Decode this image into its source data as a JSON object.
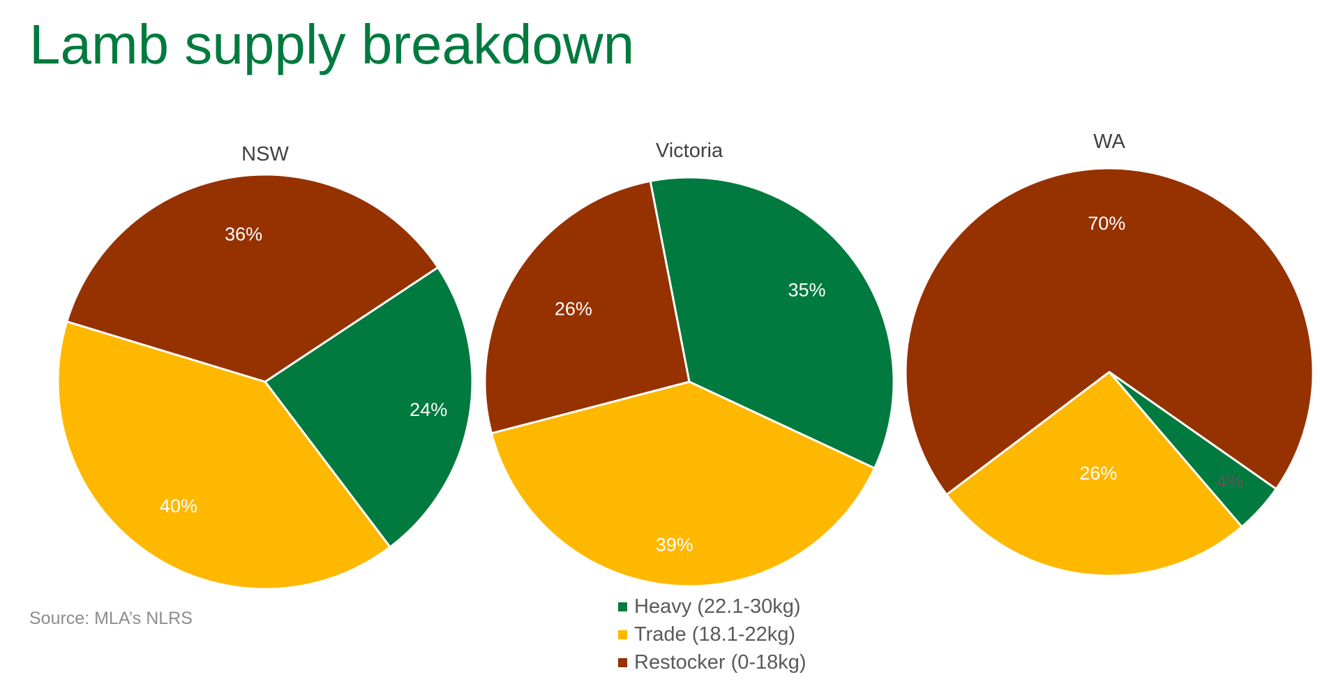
{
  "title": "Lamb supply breakdown",
  "source": "Source: MLA’s NLRS",
  "colors": {
    "heavy": "#007A3F",
    "trade": "#FFB800",
    "restocker": "#963100",
    "label_light": "#ffffff",
    "label_dark": "#595959"
  },
  "legend": [
    {
      "key": "heavy",
      "label": "Heavy (22.1-30kg)"
    },
    {
      "key": "trade",
      "label": "Trade (18.1-22kg)"
    },
    {
      "key": "restocker",
      "label": "Restocker (0-18kg)"
    }
  ],
  "chart_data": [
    {
      "type": "pie",
      "title": "NSW",
      "slices": [
        {
          "key": "heavy",
          "value": 24,
          "label": "24%"
        },
        {
          "key": "trade",
          "value": 40,
          "label": "40%"
        },
        {
          "key": "restocker",
          "value": 36,
          "label": "36%"
        }
      ]
    },
    {
      "type": "pie",
      "title": "Victoria",
      "slices": [
        {
          "key": "heavy",
          "value": 35,
          "label": "35%"
        },
        {
          "key": "trade",
          "value": 39,
          "label": "39%"
        },
        {
          "key": "restocker",
          "value": 26,
          "label": "26%"
        }
      ]
    },
    {
      "type": "pie",
      "title": "WA",
      "slices": [
        {
          "key": "heavy",
          "value": 4,
          "label": "4%"
        },
        {
          "key": "trade",
          "value": 26,
          "label": "26%"
        },
        {
          "key": "restocker",
          "value": 70,
          "label": "70%"
        }
      ]
    }
  ]
}
